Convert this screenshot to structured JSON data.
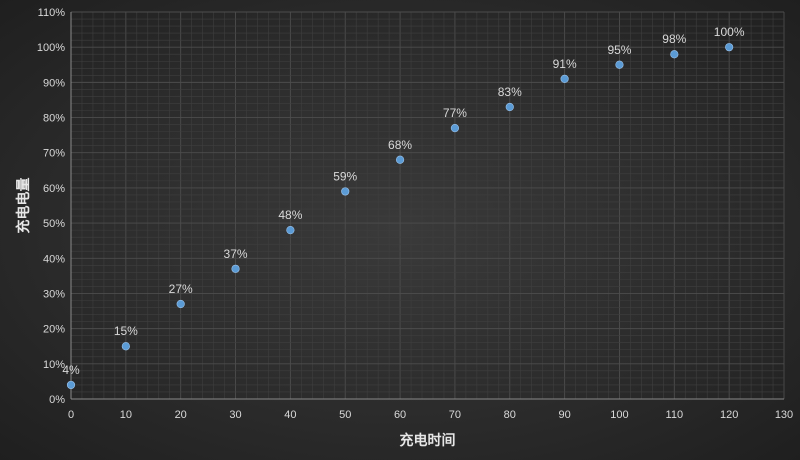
{
  "chart_data": {
    "type": "scatter",
    "title": "",
    "xlabel": "充电时间",
    "ylabel": "充电电量",
    "x": [
      0,
      10,
      20,
      30,
      40,
      50,
      60,
      70,
      80,
      90,
      100,
      110,
      120
    ],
    "series": [
      {
        "values": [
          4,
          15,
          27,
          37,
          48,
          59,
          68,
          77,
          83,
          91,
          95,
          98,
          100
        ],
        "data_labels": [
          "4%",
          "15%",
          "27%",
          "37%",
          "48%",
          "59%",
          "68%",
          "77%",
          "83%",
          "91%",
          "95%",
          "98%",
          "100%"
        ],
        "color": "#5b9bd5"
      }
    ],
    "xlim": [
      0,
      130
    ],
    "ylim": [
      0,
      110
    ],
    "x_ticks": [
      "0",
      "10",
      "20",
      "30",
      "40",
      "50",
      "60",
      "70",
      "80",
      "90",
      "100",
      "110",
      "120",
      "130"
    ],
    "y_ticks": [
      "0%",
      "10%",
      "20%",
      "30%",
      "40%",
      "50%",
      "60%",
      "70%",
      "80%",
      "90%",
      "100%",
      "110%"
    ],
    "grid": true,
    "legend": "none"
  },
  "colors": {
    "background": "#2b2b2b",
    "point": "#5b9bd5",
    "text": "#d9d9d9"
  }
}
